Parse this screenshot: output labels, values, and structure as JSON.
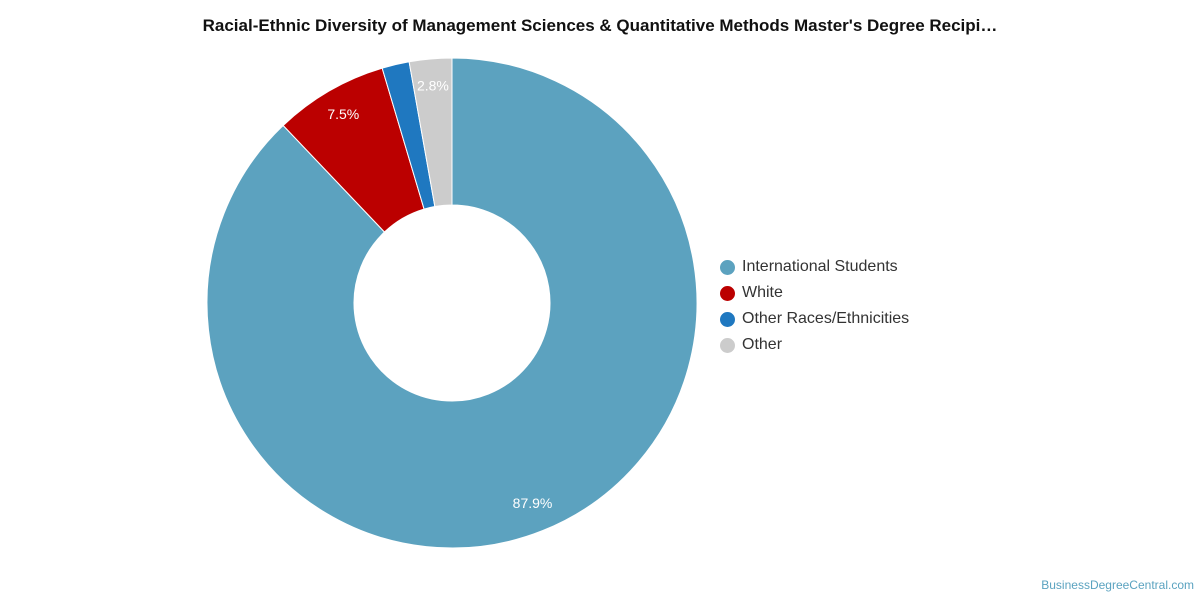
{
  "chart_data": {
    "type": "pie",
    "variant": "donut",
    "title": "Racial-Ethnic Diversity of Management Sciences & Quantitative Methods Master's Degree Recipi…",
    "categories": [
      "International Students",
      "White",
      "Other Races/Ethnicities",
      "Other"
    ],
    "values": [
      87.9,
      7.5,
      1.8,
      2.8
    ],
    "data_labels": [
      "87.9%",
      "7.5%",
      "",
      "2.8%"
    ],
    "colors": [
      "#5ca2bf",
      "#bb0000",
      "#1f78c0",
      "#cccccc"
    ],
    "legend": "right"
  },
  "source": "BusinessDegreeCentral.com"
}
